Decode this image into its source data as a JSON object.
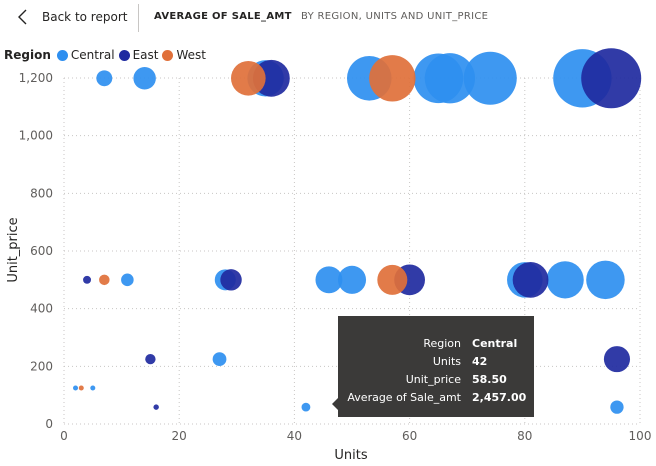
{
  "header": {
    "back_label": "Back to report",
    "breadcrumb_measure": "AVERAGE OF SALE_AMT",
    "breadcrumb_dims": "BY REGION, UNITS AND UNIT_PRICE"
  },
  "legend": {
    "title": "Region",
    "items": [
      {
        "label": "Central",
        "color": "#2e8ff0"
      },
      {
        "label": "East",
        "color": "#1f2aa0"
      },
      {
        "label": "West",
        "color": "#e0703a"
      }
    ]
  },
  "tooltip": {
    "rows": [
      {
        "label": "Region",
        "value": "Central"
      },
      {
        "label": "Units",
        "value": "42"
      },
      {
        "label": "Unit_price",
        "value": "58.50"
      },
      {
        "label": "Average of Sale_amt",
        "value": "2,457.00"
      }
    ]
  },
  "chart_data": {
    "type": "scatter",
    "title": "",
    "xlabel": "Units",
    "ylabel": "Unit_price",
    "xlim": [
      0,
      100
    ],
    "ylim": [
      0,
      1200
    ],
    "xticks": [
      0,
      20,
      40,
      60,
      80,
      100
    ],
    "yticks": [
      0,
      200,
      400,
      600,
      800,
      1000,
      1200
    ],
    "grid": true,
    "legend_position": "top-left",
    "size_field": "Average of Sale_amt",
    "series": [
      {
        "name": "Central",
        "color": "#2e8ff0",
        "points": [
          {
            "x": 7,
            "y": 1199,
            "size": 8000
          },
          {
            "x": 14,
            "y": 1199,
            "size": 16000
          },
          {
            "x": 35,
            "y": 1199,
            "size": 42000
          },
          {
            "x": 53,
            "y": 1199,
            "size": 63000
          },
          {
            "x": 65,
            "y": 1199,
            "size": 78000
          },
          {
            "x": 67,
            "y": 1199,
            "size": 80000
          },
          {
            "x": 74,
            "y": 1199,
            "size": 89000
          },
          {
            "x": 90,
            "y": 1199,
            "size": 108000
          },
          {
            "x": 11,
            "y": 500,
            "size": 5000
          },
          {
            "x": 28,
            "y": 500,
            "size": 14000
          },
          {
            "x": 46,
            "y": 500,
            "size": 23000
          },
          {
            "x": 50,
            "y": 500,
            "size": 25000
          },
          {
            "x": 80,
            "y": 500,
            "size": 40000
          },
          {
            "x": 87,
            "y": 500,
            "size": 44000
          },
          {
            "x": 94,
            "y": 500,
            "size": 47000
          },
          {
            "x": 27,
            "y": 225,
            "size": 6000
          },
          {
            "x": 2,
            "y": 125,
            "size": 250
          },
          {
            "x": 5,
            "y": 125,
            "size": 600
          },
          {
            "x": 42,
            "y": 58.5,
            "size": 2457
          },
          {
            "x": 96,
            "y": 58.5,
            "size": 5600
          }
        ]
      },
      {
        "name": "East",
        "color": "#1f2aa0",
        "points": [
          {
            "x": 36,
            "y": 1199,
            "size": 43000
          },
          {
            "x": 95,
            "y": 1199,
            "size": 114000
          },
          {
            "x": 4,
            "y": 500,
            "size": 2000
          },
          {
            "x": 29,
            "y": 500,
            "size": 14500
          },
          {
            "x": 60,
            "y": 500,
            "size": 30000
          },
          {
            "x": 81,
            "y": 500,
            "size": 40500
          },
          {
            "x": 15,
            "y": 225,
            "size": 3400
          },
          {
            "x": 96,
            "y": 225,
            "size": 21600
          },
          {
            "x": 16,
            "y": 58.5,
            "size": 940
          }
        ]
      },
      {
        "name": "West",
        "color": "#e0703a",
        "points": [
          {
            "x": 32,
            "y": 1199,
            "size": 38000
          },
          {
            "x": 57,
            "y": 1199,
            "size": 68000
          },
          {
            "x": 7,
            "y": 500,
            "size": 3500
          },
          {
            "x": 57,
            "y": 500,
            "size": 28500
          },
          {
            "x": 3,
            "y": 125,
            "size": 375
          }
        ]
      }
    ]
  }
}
